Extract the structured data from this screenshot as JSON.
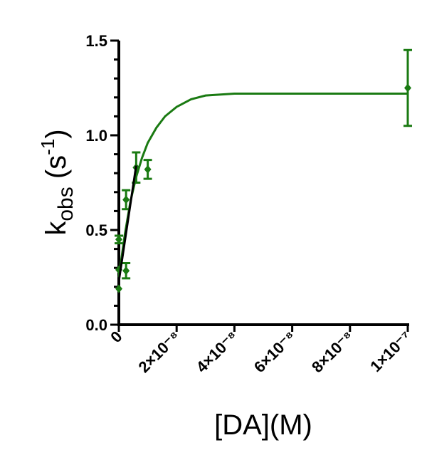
{
  "chart_data": {
    "type": "scatter",
    "xlabel": "[DA](M)",
    "ylabel": {
      "base": "k",
      "sub": "obs",
      "mid": " (s",
      "sup": "-1",
      "end": ")"
    },
    "xlim": [
      0,
      1e-07
    ],
    "ylim": [
      0,
      1.5
    ],
    "xticks": [
      {
        "value": 0,
        "label": "0"
      },
      {
        "value": 2e-08,
        "label": "2×10⁻⁸"
      },
      {
        "value": 4e-08,
        "label": "4×10⁻⁸"
      },
      {
        "value": 6e-08,
        "label": "6×10⁻⁸"
      },
      {
        "value": 8e-08,
        "label": "8×10⁻⁸"
      },
      {
        "value": 1e-07,
        "label": "1×10⁻⁷"
      }
    ],
    "yticks": [
      {
        "value": 0,
        "label": "0.0"
      },
      {
        "value": 0.5,
        "label": "0.5"
      },
      {
        "value": 1.0,
        "label": "1.0"
      },
      {
        "value": 1.5,
        "label": "1.5"
      }
    ],
    "yminorticks": [
      0.1,
      0.2,
      0.3,
      0.4,
      0.6,
      0.7,
      0.8,
      0.9,
      1.1,
      1.2,
      1.3,
      1.4
    ],
    "series": [
      {
        "color": "#1a7a12",
        "x": [
          0,
          0,
          0,
          2.5e-09,
          2.5e-09,
          6e-09,
          1e-08,
          1e-07
        ],
        "values": [
          0.19,
          0.45,
          0.29,
          0.285,
          0.66,
          0.83,
          0.82,
          1.25
        ],
        "errors": [
          null,
          0.02,
          null,
          0.04,
          0.05,
          0.08,
          0.05,
          0.2
        ]
      }
    ],
    "fit_curve": {
      "color": "#1a7a12",
      "x": [
        0,
        2e-09,
        4e-09,
        6e-09,
        8e-09,
        1e-08,
        1.3e-08,
        1.6e-08,
        2e-08,
        2.5e-08,
        3e-08,
        4e-08,
        5e-08,
        6e-08,
        8e-08,
        1e-07
      ],
      "values": [
        0.25,
        0.47,
        0.65,
        0.78,
        0.88,
        0.96,
        1.04,
        1.1,
        1.15,
        1.19,
        1.21,
        1.22,
        1.22,
        1.22,
        1.22,
        1.22
      ]
    },
    "linear_fit": {
      "color": "#000000",
      "x": [
        0,
        6e-09
      ],
      "values": [
        0.23,
        0.84
      ]
    }
  }
}
